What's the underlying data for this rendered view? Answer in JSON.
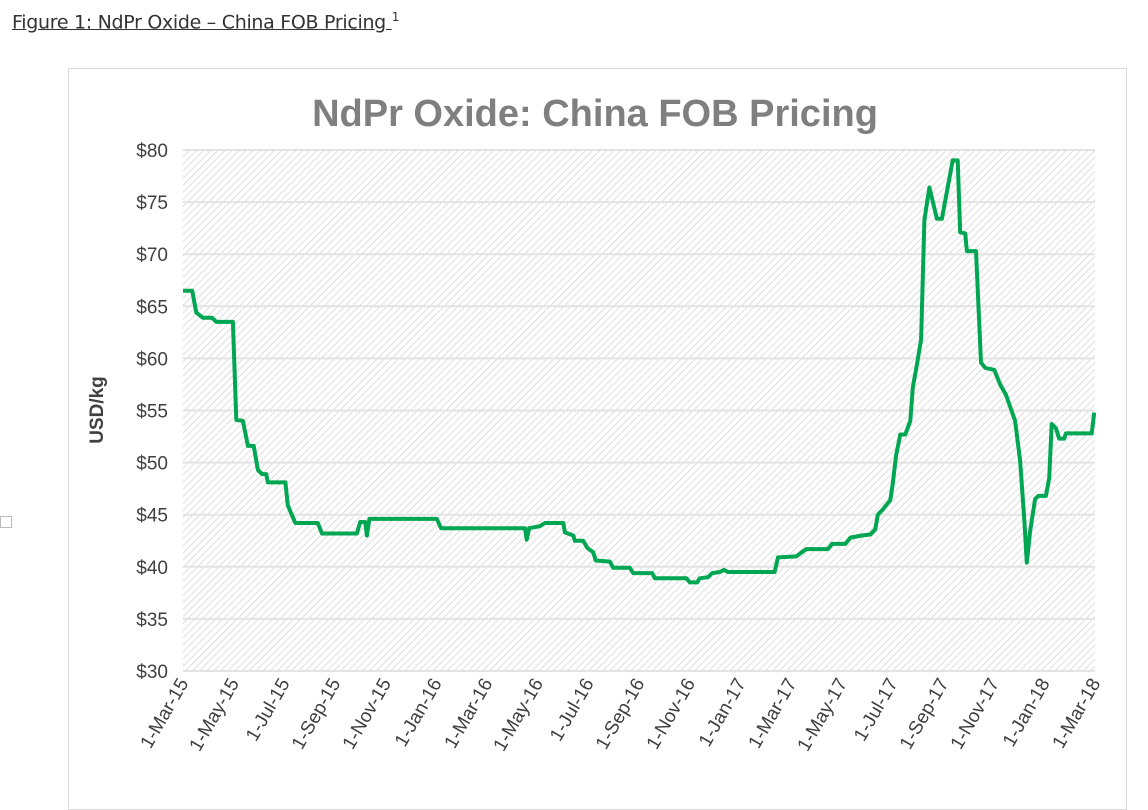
{
  "caption": {
    "text": "Figure 1: NdPr Oxide – China FOB Pricing",
    "footnote": "1"
  },
  "chart_data": {
    "type": "line",
    "title": "NdPr Oxide: China FOB Pricing",
    "xlabel": "",
    "ylabel": "USD/kg",
    "ylim": [
      30,
      80
    ],
    "xlim": [
      "2015-03-01",
      "2018-03-01"
    ],
    "y_ticks": [
      "$30",
      "$35",
      "$40",
      "$45",
      "$50",
      "$55",
      "$60",
      "$65",
      "$70",
      "$75",
      "$80"
    ],
    "x_ticks": [
      "1-Mar-15",
      "1-May-15",
      "1-Jul-15",
      "1-Sep-15",
      "1-Nov-15",
      "1-Jan-16",
      "1-Mar-16",
      "1-May-16",
      "1-Jul-16",
      "1-Sep-16",
      "1-Nov-16",
      "1-Jan-17",
      "1-Mar-17",
      "1-May-17",
      "1-Jul-17",
      "1-Sep-17",
      "1-Nov-17",
      "1-Jan-18",
      "1-Mar-18"
    ],
    "grid": true,
    "line_color": "#00a651",
    "series": [
      {
        "x": [
          "2015-03-01",
          "2015-03-12",
          "2015-03-17",
          "2015-03-25",
          "2015-04-05",
          "2015-04-10",
          "2015-04-30",
          "2015-05-04",
          "2015-05-12",
          "2015-05-18",
          "2015-05-25",
          "2015-05-30",
          "2015-06-04",
          "2015-06-09",
          "2015-06-11",
          "2015-07-02",
          "2015-07-05",
          "2015-07-14",
          "2015-08-10",
          "2015-08-15",
          "2015-09-26",
          "2015-09-30",
          "2015-10-06",
          "2015-10-08",
          "2015-10-11",
          "2015-12-31",
          "2016-01-05",
          "2016-04-15",
          "2016-04-17",
          "2016-04-20",
          "2016-05-03",
          "2016-05-09",
          "2016-05-31",
          "2016-06-02",
          "2016-06-12",
          "2016-06-14",
          "2016-06-24",
          "2016-06-29",
          "2016-07-06",
          "2016-07-09",
          "2016-07-26",
          "2016-07-30",
          "2016-08-19",
          "2016-08-23",
          "2016-09-15",
          "2016-09-18",
          "2016-10-26",
          "2016-10-30",
          "2016-11-08",
          "2016-11-11",
          "2016-11-21",
          "2016-11-26",
          "2016-12-05",
          "2016-12-10",
          "2016-12-15",
          "2017-02-09",
          "2017-02-13",
          "2017-03-07",
          "2017-03-12",
          "2017-03-19",
          "2017-04-14",
          "2017-04-19",
          "2017-05-05",
          "2017-05-11",
          "2017-05-25",
          "2017-06-04",
          "2017-06-10",
          "2017-06-13",
          "2017-06-19",
          "2017-06-28",
          "2017-07-01",
          "2017-07-05",
          "2017-07-10",
          "2017-07-16",
          "2017-07-22",
          "2017-07-25",
          "2017-07-30",
          "2017-08-04",
          "2017-08-08",
          "2017-08-14",
          "2017-08-23",
          "2017-08-29",
          "2017-09-11",
          "2017-09-17",
          "2017-09-20",
          "2017-09-26",
          "2017-09-28",
          "2017-10-09",
          "2017-10-15",
          "2017-10-20",
          "2017-10-31",
          "2017-11-07",
          "2017-11-14",
          "2017-11-25",
          "2017-12-01",
          "2017-12-06",
          "2017-12-09",
          "2017-12-13",
          "2017-12-19",
          "2017-12-23",
          "2018-01-01",
          "2018-01-05",
          "2018-01-08",
          "2018-01-13",
          "2018-01-17",
          "2018-01-23",
          "2018-01-25",
          "2018-02-25",
          "2018-02-28"
        ],
        "y": [
          66.5,
          66.5,
          64.4,
          63.9,
          63.9,
          63.5,
          63.5,
          54.1,
          54.0,
          51.6,
          51.6,
          49.3,
          48.9,
          48.9,
          48.1,
          48.1,
          45.9,
          44.2,
          44.2,
          43.2,
          43.2,
          44.3,
          44.3,
          43.0,
          44.6,
          44.6,
          43.7,
          43.7,
          42.6,
          43.7,
          43.9,
          44.2,
          44.2,
          43.3,
          43.0,
          42.5,
          42.5,
          41.8,
          41.4,
          40.6,
          40.5,
          39.9,
          39.9,
          39.4,
          39.4,
          38.9,
          38.9,
          38.5,
          38.5,
          38.9,
          39.0,
          39.4,
          39.5,
          39.7,
          39.5,
          39.5,
          40.9,
          41.0,
          41.3,
          41.7,
          41.7,
          42.2,
          42.2,
          42.8,
          43.0,
          43.1,
          43.6,
          45.0,
          45.5,
          46.4,
          48.0,
          50.7,
          52.7,
          52.7,
          54.0,
          57.2,
          59.4,
          61.8,
          73.3,
          76.4,
          73.4,
          73.4,
          79.0,
          79.0,
          72.1,
          72.0,
          70.3,
          70.3,
          59.6,
          59.1,
          58.9,
          57.5,
          56.5,
          54.0,
          50.2,
          44.5,
          40.4,
          43.4,
          46.5,
          46.8,
          46.8,
          48.5,
          53.7,
          53.3,
          52.3,
          52.3,
          52.8,
          52.8,
          54.8
        ]
      }
    ]
  }
}
